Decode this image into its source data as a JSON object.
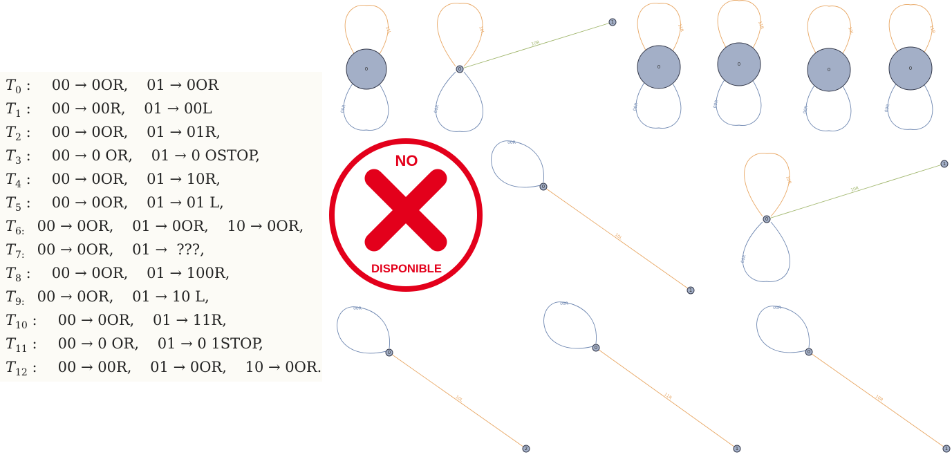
{
  "rules": [
    {
      "label": "T",
      "sub": "0",
      "sep": " :",
      "text": "00 → 0OR,    01 → 0OR"
    },
    {
      "label": "T",
      "sub": "1",
      "sep": " :",
      "text": "00 → 00R,    01 → 00L"
    },
    {
      "label": "T",
      "sub": "2",
      "sep": " :",
      "text": "00 → 0OR,    01 → 01R,"
    },
    {
      "label": "T",
      "sub": "3",
      "sep": " :",
      "text": "00 → 0 OR,    01 → 0 OSTOP,"
    },
    {
      "label": "T",
      "sub": "4",
      "sep": " :",
      "text": "00 → 0OR,    01 → 10R,"
    },
    {
      "label": "T",
      "sub": "5",
      "sep": " :",
      "text": "00 → 0OR,    01 → 01 L,"
    },
    {
      "label": "T",
      "sub": "6:",
      "sep": "",
      "text": "00 → 0OR,    01 → 0OR,    10 → 0OR,"
    },
    {
      "label": "T",
      "sub": "7:",
      "sep": "",
      "text": "00 → 0OR,    01 →  ???,"
    },
    {
      "label": "T",
      "sub": "8",
      "sep": " :",
      "text": "00 → 0OR,    01 → 100R,"
    },
    {
      "label": "T",
      "sub": "9:",
      "sep": "",
      "text": "00 → 0OR,    01 → 10 L,"
    },
    {
      "label": "T",
      "sub": "10",
      "sep": " :",
      "text": "00 → 0OR,    01 → 11R,"
    },
    {
      "label": "T",
      "sub": "11",
      "sep": " :",
      "text": "00 → 0 OR,    01 → 0 1STOP,"
    },
    {
      "label": "T",
      "sub": "12",
      "sep": " :",
      "text": "00 → 00R,    01 → 0OR,    10 → 0OR."
    }
  ],
  "badge": {
    "top_text": "NO",
    "bottom_text": "DISPONIBLE",
    "color": "#e3001b"
  },
  "colors": {
    "node_fill": "#a3afc7",
    "node_stroke": "#33384a",
    "loop_orange": "#e8a662",
    "loop_blue": "#6d86b0",
    "edge_green": "#9fb56a"
  },
  "graphs": [
    {
      "node": {
        "label": "0",
        "r": 29
      },
      "loops": [
        {
          "dir": "up",
          "color": "loop_orange",
          "label": "11L"
        },
        {
          "dir": "down",
          "color": "loop_blue",
          "label": "00R"
        }
      ]
    },
    {
      "node": {
        "label": "0",
        "r": 5
      },
      "loops": [
        {
          "dir": "up",
          "color": "loop_orange",
          "label": "10L"
        },
        {
          "dir": "down",
          "color": "loop_blue",
          "label": "00R"
        }
      ],
      "edge": {
        "to_label": "1",
        "color": "edge_green",
        "label": "10R"
      }
    },
    {
      "node": {
        "label": "0",
        "r": 31
      },
      "loops": [
        {
          "dir": "up",
          "color": "loop_orange",
          "label": "11R"
        },
        {
          "dir": "down",
          "color": "loop_blue",
          "label": "00R"
        }
      ]
    },
    {
      "node": {
        "label": "0",
        "r": 31
      },
      "loops": [
        {
          "dir": "up",
          "color": "loop_orange",
          "label": "11R"
        },
        {
          "dir": "down",
          "color": "loop_blue",
          "label": "00R"
        }
      ]
    },
    {
      "node": {
        "label": "0",
        "r": 31
      },
      "loops": [
        {
          "dir": "up",
          "color": "loop_orange",
          "label": "10L"
        },
        {
          "dir": "down",
          "color": "loop_blue",
          "label": "00R"
        }
      ]
    },
    {
      "node": {
        "label": "0",
        "r": 31
      },
      "loops": [
        {
          "dir": "up",
          "color": "loop_orange",
          "label": "11R"
        },
        {
          "dir": "down",
          "color": "loop_blue",
          "label": "00R"
        }
      ]
    },
    {
      "node": {
        "label": "0",
        "r": 5
      },
      "loops": [
        {
          "dir": "up-left",
          "color": "loop_blue",
          "label": "00R"
        }
      ],
      "edge": {
        "to_label": "1",
        "color": "loop_orange",
        "label": "10L"
      }
    },
    {
      "node": {
        "label": "0",
        "r": 5
      },
      "loops": [
        {
          "dir": "up",
          "color": "loop_orange",
          "label": "10R"
        },
        {
          "dir": "down",
          "color": "loop_blue",
          "label": "00R"
        }
      ],
      "edge": {
        "to_label": "1",
        "color": "edge_green",
        "label": "10R"
      }
    },
    {
      "node": {
        "label": "0",
        "r": 5
      },
      "loops": [
        {
          "dir": "up-left",
          "color": "loop_blue",
          "label": "00R"
        }
      ],
      "edge": {
        "to_label": "2",
        "color": "loop_orange",
        "label": "10L"
      }
    },
    {
      "node": {
        "label": "0",
        "r": 5
      },
      "loops": [
        {
          "dir": "up-left",
          "color": "loop_blue",
          "label": "00R"
        }
      ],
      "edge": {
        "to_label": "1",
        "color": "loop_orange",
        "label": "11R"
      }
    },
    {
      "node": {
        "label": "0",
        "r": 5
      },
      "loops": [
        {
          "dir": "up-left",
          "color": "loop_blue",
          "label": "00R"
        }
      ],
      "edge": {
        "to_label": "1",
        "color": "loop_orange",
        "label": "10R"
      }
    }
  ]
}
